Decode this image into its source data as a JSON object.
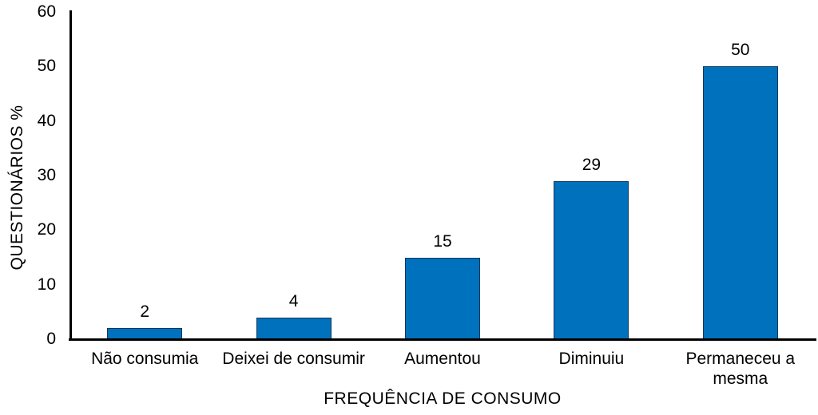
{
  "chart_data": {
    "type": "bar",
    "categories": [
      "Não consumia",
      "Deixei de consumir",
      "Aumentou",
      "Diminuiu",
      "Permaneceu a\nmesma"
    ],
    "values": [
      2,
      4,
      15,
      29,
      50
    ],
    "title": "",
    "xlabel": "FREQUÊNCIA DE CONSUMO",
    "ylabel": "QUESTIONÁRIOS %",
    "ylim": [
      0,
      60
    ],
    "yticks": [
      0,
      10,
      20,
      30,
      40,
      50,
      60
    ],
    "grid": false,
    "legend": "none",
    "data_labels_shown": true
  },
  "colors": {
    "bar_fill": "#0071BC",
    "bar_border": "#17365D",
    "axis_line": "#000000",
    "text": "#000000",
    "background": "#FFFFFF"
  }
}
